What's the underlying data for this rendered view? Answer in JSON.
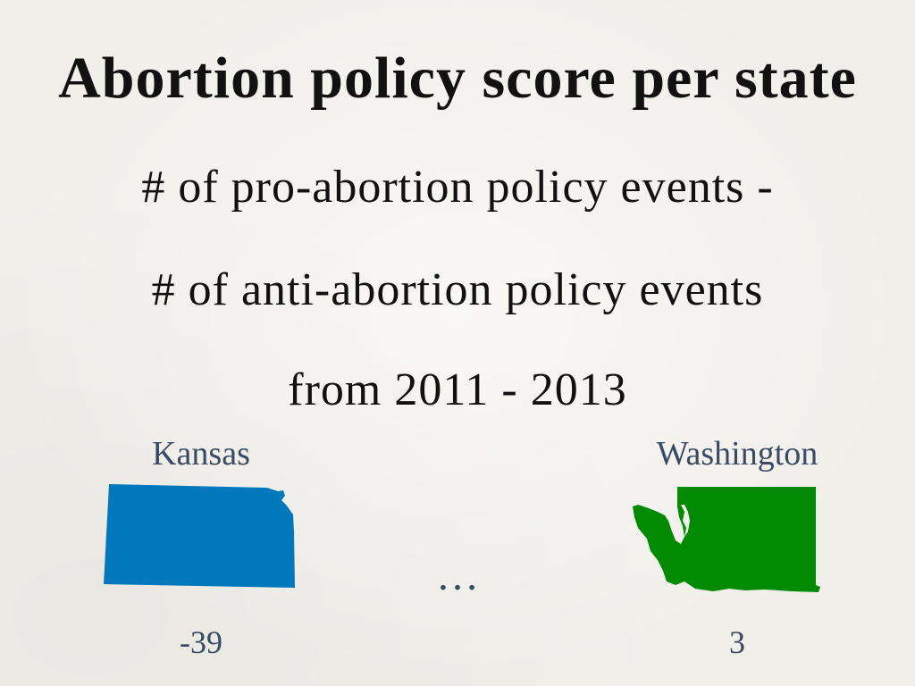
{
  "slide": {
    "title": "Abortion policy score per state",
    "lines": [
      "# of pro-abortion policy events -",
      "# of anti-abortion policy events",
      "from 2011 - 2013"
    ],
    "ellipsis": "…"
  },
  "states": {
    "kansas": {
      "label": "Kansas",
      "score": "-39",
      "color": "#0078bb",
      "icon": "kansas-state-shape"
    },
    "washington": {
      "label": "Washington",
      "score": "3",
      "color": "#028a02",
      "icon": "washington-state-shape"
    }
  }
}
